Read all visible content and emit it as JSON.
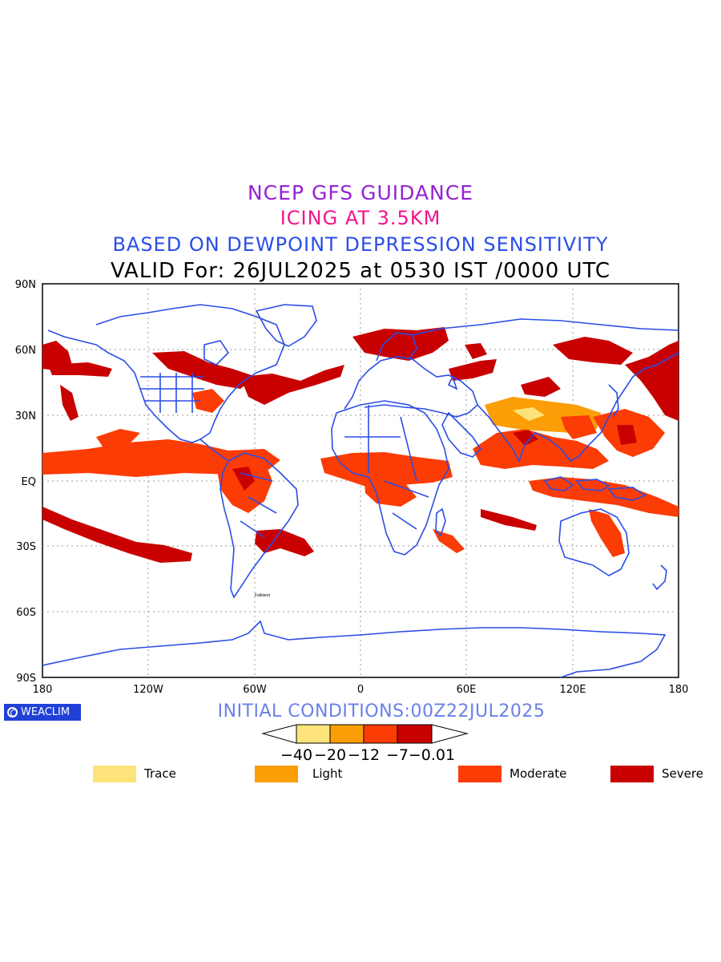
{
  "titles": {
    "line1": "NCEP GFS GUIDANCE",
    "line2": "ICING AT 3.5KM",
    "line3": "BASED ON DEWPOINT DEPRESSION SENSITIVITY",
    "line4": "VALID For: 26JUL2025 at 0530 IST /0000 UTC"
  },
  "map": {
    "lat_labels": [
      "90N",
      "60N",
      "30N",
      "EQ",
      "30S",
      "60S",
      "90S"
    ],
    "lon_labels": [
      "180",
      "120W",
      "60W",
      "0",
      "60E",
      "120E",
      "180"
    ],
    "station_labels": [
      "Falkland"
    ]
  },
  "branding": {
    "text": "WEACLIM"
  },
  "initial_conditions": "INITIAL CONDITIONS:00Z22JUL2025",
  "colorbar": {
    "ticks": [
      "−40",
      "−20",
      "−12",
      "−7",
      "−0.01"
    ],
    "colors": [
      "#fde37a",
      "#fb9e07",
      "#fb3c05",
      "#c80000"
    ]
  },
  "legend": [
    {
      "label": "Trace",
      "color": "#fde37a"
    },
    {
      "label": "Light",
      "color": "#fb9e07"
    },
    {
      "label": "Moderate",
      "color": "#fb3c05"
    },
    {
      "label": "Severe",
      "color": "#c80000"
    }
  ]
}
